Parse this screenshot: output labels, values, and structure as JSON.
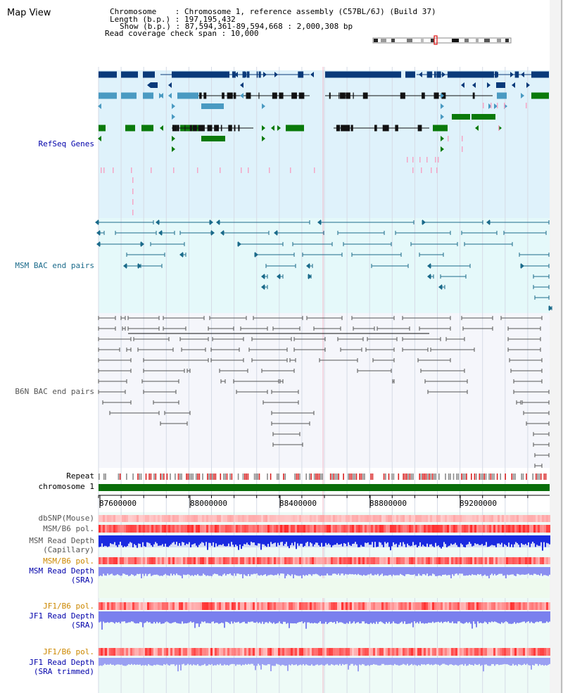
{
  "page": {
    "title": "Map View"
  },
  "header": {
    "chromosome": "Chromosome    : Chromosome 1, reference assembly (C57BL/6J) (Build 37)",
    "length": "Length (b.p.) : 197,195,432",
    "show": "Show (b.p.) : 87,594,361-89,594,668 : 2,000,308 bp",
    "coverage": "Read coverage check span : 10,000"
  },
  "tracks": {
    "refseq": "RefSeq Genes",
    "msm_bac": "MSM BAC end pairs",
    "b6n_bac": "B6N BAC end pairs",
    "repeat": "Repeat",
    "chromosome": "chromosome 1",
    "dbsnp": "dbSNP(Mouse)",
    "msm_b6_pol": "MSM/B6 pol.",
    "msm_depth_cap_1": "MSM Read Depth",
    "msm_depth_cap_2": "(Capillary)",
    "msm_b6_pol2": "MSM/B6 pol.",
    "msm_depth_sra_1": "MSM Read Depth",
    "msm_depth_sra_2": "(SRA)",
    "jf1_b6_pol": "JF1/B6 pol.",
    "jf1_depth_sra_1": "JF1 Read Depth",
    "jf1_depth_sra_2": "(SRA)",
    "jf1_b6_pol2": "JF1/B6 pol.",
    "jf1_depth_trim_1": "JF1 Read Depth",
    "jf1_depth_trim_2": "(SRA trimmed)"
  },
  "axis": {
    "ticks": [
      "87600000",
      "88000000",
      "88400000",
      "88800000",
      "89200000"
    ]
  },
  "colors": {
    "refseq_bg": "#dff2fb",
    "msm_bg": "#e5f9fa",
    "gene_dark": "#0a3a7a",
    "gene_mid": "#4a9ac2",
    "gene_green": "#0a7a0a",
    "pink": "#f4a6c6",
    "bac_line": "#1a6a8a",
    "b6n_line": "#555555",
    "chrom_bar": "#0a6e0a",
    "depth_blue": "#1a2ae0",
    "depth_light": "#8a8ef0",
    "pol_red": "#e83030",
    "label_blue": "#0000aa",
    "label_orange": "#cc8800",
    "label_teal": "#1a6a8a"
  }
}
